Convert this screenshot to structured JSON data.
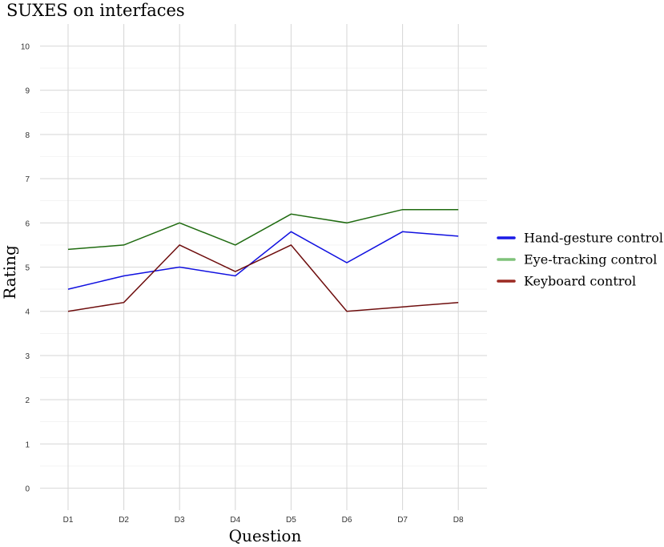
{
  "chart_data": {
    "type": "line",
    "title": "SUXES on interfaces",
    "xlabel": "Question",
    "ylabel": "Rating",
    "categories": [
      "D1",
      "D2",
      "D3",
      "D4",
      "D5",
      "D6",
      "D7",
      "D8"
    ],
    "ylim": [
      0,
      10
    ],
    "yticks": [
      "0",
      "1",
      "2",
      "3",
      "4",
      "5",
      "6",
      "7",
      "8",
      "9",
      "10"
    ],
    "grid": true,
    "legend_position": "right",
    "series": [
      {
        "name": "Hand-gesture control",
        "color": "#1010e0",
        "legend_color": "#1a1ae6",
        "values": [
          4.5,
          4.8,
          5.0,
          4.8,
          5.8,
          5.1,
          5.8,
          5.7
        ]
      },
      {
        "name": "Eye-tracking control",
        "color": "#1f6b10",
        "legend_color": "#7fc27a",
        "values": [
          5.4,
          5.5,
          6.0,
          5.5,
          6.2,
          6.0,
          6.3,
          6.3
        ]
      },
      {
        "name": "Keyboard control",
        "color": "#6e0d0d",
        "legend_color": "#9c2a22",
        "values": [
          4.0,
          4.2,
          5.5,
          4.9,
          5.5,
          4.0,
          4.1,
          4.2
        ]
      }
    ]
  }
}
